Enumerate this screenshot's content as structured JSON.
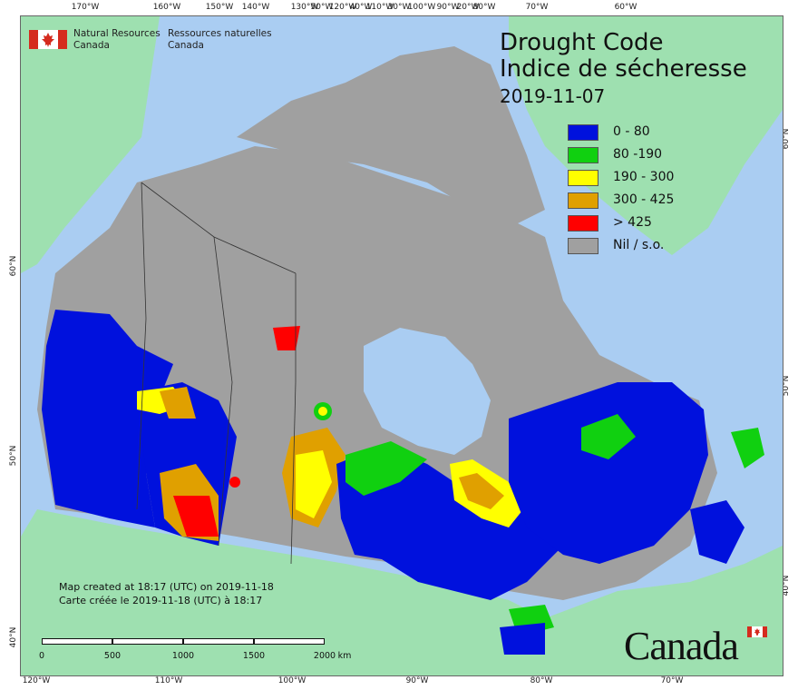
{
  "map": {
    "colors": {
      "ocean": "#aacdf2",
      "other_land": "#9ee0b0",
      "no_data": "#a0a0a0",
      "class_0_80": "#0011dd",
      "class_80_190": "#10d010",
      "class_190_300": "#ffff00",
      "class_300_425": "#e0a000",
      "class_gt_425": "#ff0000"
    },
    "ticks_top": [
      "170°W",
      "160°W",
      "150°W",
      "140°W",
      "130°W",
      "120°W",
      "110°W",
      "100°W",
      "90°W",
      "80°W",
      "70°W",
      "60°W",
      "50°W",
      "40°W",
      "30°W",
      "20°W"
    ],
    "ticks_bottom": [
      "120°W",
      "110°W",
      "100°W",
      "90°W",
      "80°W",
      "70°W"
    ],
    "ticks_left": [
      "60°N",
      "50°N",
      "40°N"
    ],
    "ticks_right": [
      "60°N",
      "50°N",
      "40°N"
    ]
  },
  "organization": {
    "en_line1": "Natural Resources",
    "en_line2": "Canada",
    "fr_line1": "Ressources naturelles",
    "fr_line2": "Canada"
  },
  "title": {
    "line1": "Drought Code",
    "line2": "Indice de sécheresse",
    "date": "2019-11-07"
  },
  "legend": [
    {
      "label": "0 - 80",
      "color": "#0011dd"
    },
    {
      "label": "80 -190",
      "color": "#10d010"
    },
    {
      "label": "190 - 300",
      "color": "#ffff00"
    },
    {
      "label": "300 - 425",
      "color": "#e0a000"
    },
    {
      "label": "> 425",
      "color": "#ff0000"
    },
    {
      "label": "Nil / s.o.",
      "color": "#a0a0a0"
    }
  ],
  "credit": {
    "en": "Map created at 18:17 (UTC) on 2019-11-18",
    "fr": "Carte créée le 2019-11-18 (UTC) à 18:17"
  },
  "scale_bar": {
    "labels": [
      "0",
      "500",
      "1000",
      "1500",
      "2000"
    ],
    "unit": "km"
  },
  "wordmark": "Canada"
}
